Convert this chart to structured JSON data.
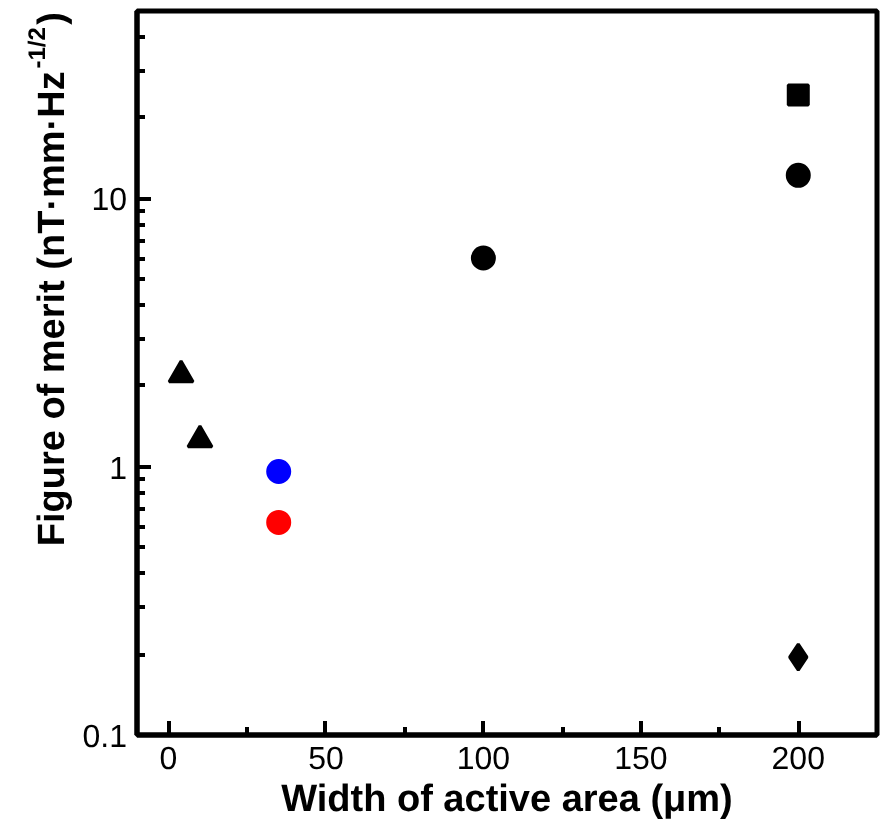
{
  "chart_data": {
    "type": "scatter",
    "xlabel": "Width of active area (μm)",
    "ylabel": "Figure of merit (nT·mm·Hz$^{-1/2}$)",
    "log": "y",
    "xlim": [
      -10,
      225
    ],
    "xticks": [
      0,
      50,
      100,
      150,
      200
    ],
    "ylim": [
      0.1,
      50
    ],
    "yticks": [
      0.1,
      1,
      10
    ],
    "grid": false,
    "series": [
      {
        "color": "#000000",
        "marker": "triangle",
        "x": [
          4
        ],
        "values": [
          2.2
        ]
      },
      {
        "color": "#000000",
        "marker": "triangle",
        "x": [
          10
        ],
        "values": [
          1.26
        ]
      },
      {
        "color": "#0000ff",
        "marker": "circle",
        "x": [
          35
        ],
        "values": [
          0.96
        ]
      },
      {
        "color": "#ff0000",
        "marker": "circle",
        "x": [
          35
        ],
        "values": [
          0.62
        ]
      },
      {
        "color": "#000000",
        "marker": "circle",
        "x": [
          100
        ],
        "values": [
          6.0
        ]
      },
      {
        "color": "#000000",
        "marker": "square",
        "x": [
          200
        ],
        "values": [
          24.3
        ]
      },
      {
        "color": "#000000",
        "marker": "circle",
        "x": [
          200
        ],
        "values": [
          12.2
        ]
      },
      {
        "color": "#000000",
        "marker": "diamond",
        "x": [
          200
        ],
        "values": [
          0.195
        ]
      }
    ]
  }
}
